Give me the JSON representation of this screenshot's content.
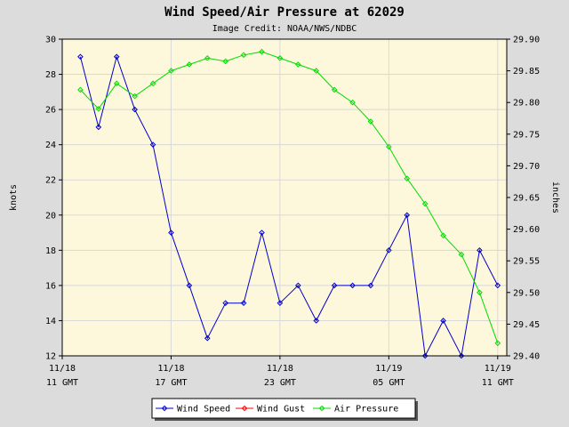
{
  "chart_data": {
    "type": "line",
    "title": "Wind Speed/Air Pressure at 62029",
    "subtitle": "Image Credit: NOAA/NWS/NDBC",
    "ylabel": "knots",
    "y2label": "inches",
    "ylim": [
      12,
      30
    ],
    "y2lim": [
      29.4,
      29.9
    ],
    "y_ticks": [
      "12",
      "14",
      "16",
      "18",
      "20",
      "22",
      "24",
      "26",
      "28",
      "30"
    ],
    "y2_ticks": [
      "29.40",
      "29.45",
      "29.50",
      "29.55",
      "29.60",
      "29.65",
      "29.70",
      "29.75",
      "29.80",
      "29.85",
      "29.90"
    ],
    "x_hours_range": [
      0,
      24.5
    ],
    "x_ticks": [
      {
        "hour": 0,
        "line1": "11/18",
        "line2": "11 GMT"
      },
      {
        "hour": 6,
        "line1": "11/18",
        "line2": "17 GMT"
      },
      {
        "hour": 12,
        "line1": "11/18",
        "line2": "23 GMT"
      },
      {
        "hour": 18,
        "line1": "11/19",
        "line2": "05 GMT"
      },
      {
        "hour": 24,
        "line1": "11/19",
        "line2": "11 GMT"
      }
    ],
    "grid": true,
    "legend_position": "bottom",
    "series": [
      {
        "name": "Wind Speed",
        "axis": "left",
        "color": "#0000cc",
        "x": [
          1,
          2,
          3,
          4,
          5,
          6,
          7,
          8,
          9,
          10,
          11,
          12,
          13,
          14,
          15,
          16,
          17,
          18,
          19,
          20,
          21,
          22,
          23,
          24
        ],
        "values": [
          29,
          25,
          29,
          26,
          24,
          19,
          16,
          13,
          15,
          15,
          19,
          15,
          16,
          14,
          16,
          16,
          16,
          18,
          20,
          12,
          14,
          12,
          18,
          16
        ]
      },
      {
        "name": "Wind Gust",
        "axis": "left",
        "color": "#ff0000",
        "x": [],
        "values": []
      },
      {
        "name": "Air Pressure",
        "axis": "right",
        "color": "#00dd00",
        "x": [
          1,
          2,
          3,
          4,
          5,
          6,
          7,
          8,
          9,
          10,
          11,
          12,
          13,
          14,
          15,
          16,
          17,
          18,
          19,
          20,
          21,
          22,
          23,
          24
        ],
        "values": [
          29.82,
          29.79,
          29.83,
          29.81,
          29.83,
          29.85,
          29.86,
          29.87,
          29.865,
          29.875,
          29.88,
          29.87,
          29.86,
          29.85,
          29.82,
          29.8,
          29.77,
          29.73,
          29.68,
          29.64,
          29.59,
          29.56,
          29.5,
          29.42
        ]
      }
    ]
  }
}
